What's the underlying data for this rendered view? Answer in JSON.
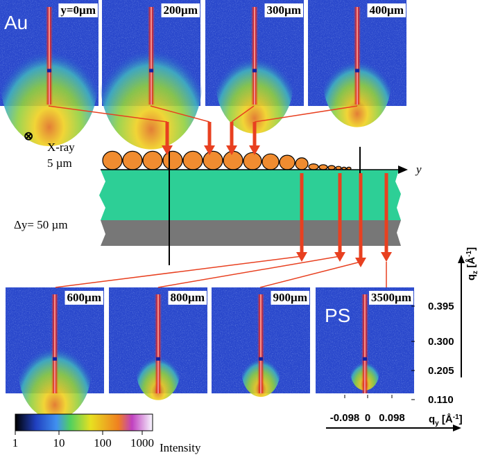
{
  "top_panels": [
    {
      "label": "y=0µm"
    },
    {
      "label": "200µm"
    },
    {
      "label": "300µm"
    },
    {
      "label": "400µm"
    }
  ],
  "bottom_panels": [
    {
      "label": "600µm"
    },
    {
      "label": "800µm"
    },
    {
      "label": "900µm"
    },
    {
      "label": "3500µm"
    }
  ],
  "material_top": "Au",
  "material_bottom": "PS",
  "xray": {
    "symbol": "⊗",
    "label": "X-ray",
    "size": "5 µm"
  },
  "delta_y": "Δy= 50 µm",
  "y_axis": "y",
  "qz_axis": {
    "q": "q",
    "sub": "z",
    "unit": " [Å",
    "sup": "-1",
    "close": "]",
    "ticks": [
      "0.395",
      "0.300",
      "0.205",
      "0.110"
    ]
  },
  "qy_axis": {
    "q": "q",
    "sub": "y",
    "unit": " [Å",
    "sup": "-1",
    "close": "]",
    "ticks": [
      "-0.098",
      "0",
      "0.098"
    ]
  },
  "colorbar": {
    "ticks": [
      "1",
      "10",
      "100",
      "1000"
    ],
    "label": "Intensity"
  }
}
